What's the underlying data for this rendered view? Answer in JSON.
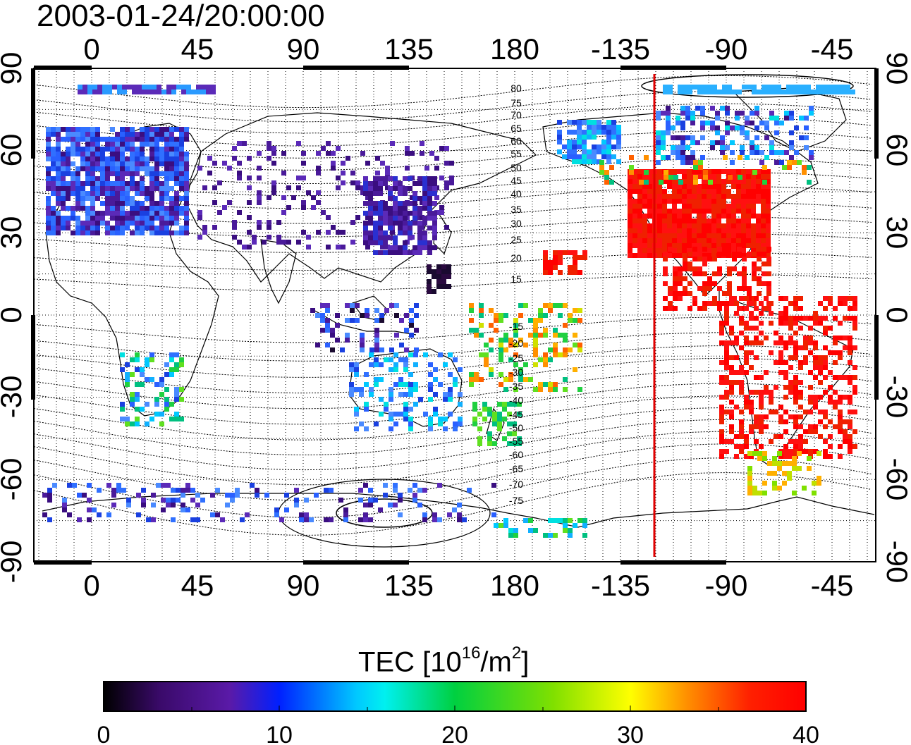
{
  "title": "2003-01-24/20:00:00",
  "map": {
    "top_lon_ticks": [
      "0",
      "45",
      "90",
      "135",
      "180",
      "-135",
      "-90",
      "-45"
    ],
    "bottom_lon_ticks": [
      "0",
      "45",
      "90",
      "135",
      "180",
      "-135",
      "-90",
      "-45"
    ],
    "left_lat_ticks": [
      "90",
      "60",
      "30",
      "0",
      "-30",
      "-60",
      "-90"
    ],
    "right_lat_ticks": [
      "90",
      "60",
      "30",
      "0",
      "-30",
      "-60",
      "-90"
    ],
    "contour_labels_north": [
      "80",
      "75",
      "70",
      "65",
      "60",
      "55",
      "50",
      "45",
      "40",
      "35",
      "30",
      "25",
      "20",
      "15"
    ],
    "contour_labels_south": [
      "-15",
      "-20",
      "-25",
      "-30",
      "-35",
      "-40",
      "-45",
      "-50",
      "-55",
      "-60",
      "-65",
      "-70",
      "-75"
    ],
    "terminator_color": "#e00000",
    "grid": "dotted"
  },
  "colorbar": {
    "label_prefix": "TEC  [10",
    "label_exp1": "16",
    "label_mid": "/m",
    "label_exp2": "2",
    "label_suffix": "]",
    "ticks": [
      "0",
      "10",
      "20",
      "30",
      "40"
    ],
    "range": [
      0,
      40
    ],
    "colors": [
      "#000000",
      "#3a0a6a",
      "#5a1aa8",
      "#0020ff",
      "#00c8ff",
      "#00e0e0",
      "#00d040",
      "#80e000",
      "#ffff00",
      "#ff9000",
      "#ff2000",
      "#ff0000"
    ]
  }
}
